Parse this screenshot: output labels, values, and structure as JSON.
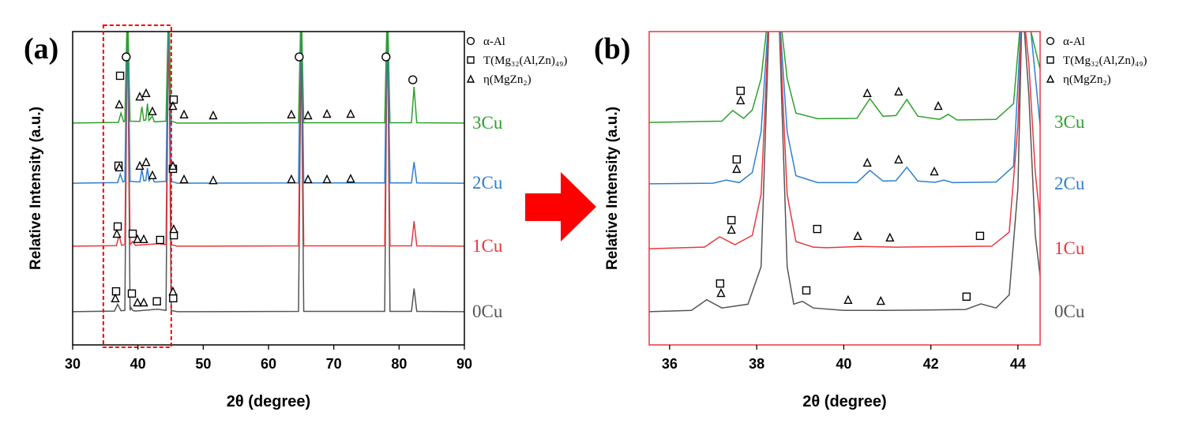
{
  "chart_data": [
    {
      "type": "line",
      "panel": "(a)",
      "xlabel": "2θ (degree)",
      "ylabel": "Relative Intensity (a.u.)",
      "frame_color": "#000000",
      "xlim": [
        30,
        90
      ],
      "xticks": [
        30,
        40,
        50,
        60,
        70,
        80,
        90
      ],
      "ylim": [
        0,
        100
      ],
      "highlight_xlim": [
        34.7,
        45.1
      ],
      "highlight_color": "#ff0000",
      "series": [
        {
          "name": "0Cu",
          "color": "#555555",
          "x": [
            30,
            36.4,
            36.9,
            37.4,
            38,
            38.4,
            38.8,
            38.9,
            39.2,
            39.6,
            43,
            44.3,
            44.7,
            45.1,
            46,
            64.6,
            65,
            65.4,
            77.8,
            78.2,
            78.6,
            81.9,
            82.3,
            82.7,
            90
          ],
          "values": [
            10.6,
            10.8,
            13,
            10.9,
            11,
            110,
            11,
            12,
            11,
            10.8,
            11.4,
            11,
            110,
            11,
            10.6,
            10.7,
            99.5,
            10.7,
            10.7,
            110,
            10.7,
            10.7,
            18,
            10.7,
            10.6
          ]
        },
        {
          "name": "1Cu",
          "color": "#e8383d",
          "x": [
            30,
            36.7,
            37.1,
            37.5,
            38,
            38.4,
            38.8,
            39.2,
            39.6,
            43.2,
            44.3,
            44.7,
            45.1,
            46,
            64.6,
            65,
            65.4,
            77.8,
            78.2,
            78.6,
            81.9,
            82.3,
            82.7,
            90
          ],
          "values": [
            31.5,
            31.7,
            35,
            31.8,
            32,
            110,
            32,
            33,
            31.8,
            32.3,
            32,
            110,
            32,
            31.5,
            31.6,
            110,
            31.6,
            31.6,
            110,
            31.6,
            31.6,
            39.5,
            31.6,
            31.5
          ]
        },
        {
          "name": "2Cu",
          "color": "#2e7fd1",
          "x": [
            30,
            36.9,
            37.3,
            37.7,
            38,
            38.4,
            38.8,
            40.3,
            40.6,
            40.9,
            41.2,
            41.45,
            41.7,
            42.2,
            42.5,
            44.3,
            44.7,
            45.1,
            46,
            64.6,
            65,
            65.4,
            77.8,
            78.2,
            78.6,
            81.9,
            82.3,
            82.7,
            90
          ],
          "values": [
            51.6,
            51.8,
            54.5,
            52,
            52.3,
            110,
            52.2,
            52,
            56,
            52.4,
            52.5,
            56.5,
            52.4,
            53.8,
            52,
            52.2,
            110,
            52.2,
            51.6,
            51.7,
            110,
            51.7,
            51.7,
            110,
            51.7,
            51.7,
            58.4,
            51.7,
            51.6
          ]
        },
        {
          "name": "3Cu",
          "color": "#2ea02e",
          "x": [
            30,
            37,
            37.4,
            37.8,
            38,
            38.4,
            38.8,
            40.3,
            40.6,
            40.9,
            41.2,
            41.45,
            41.7,
            42.2,
            42.5,
            44.3,
            44.7,
            45.1,
            46,
            64.6,
            65,
            65.4,
            77.8,
            78.2,
            78.6,
            81.9,
            82.3,
            82.7,
            90
          ],
          "values": [
            70.8,
            71,
            74,
            71.2,
            71.5,
            110,
            71.4,
            71.3,
            76,
            71.6,
            71.8,
            77,
            71.6,
            73,
            71.2,
            71.4,
            110,
            71.4,
            70.8,
            70.9,
            110,
            70.9,
            70.9,
            110,
            70.9,
            70.9,
            82.4,
            70.9,
            70.8
          ]
        }
      ],
      "phases": [
        {
          "name": "α-Al",
          "symbol": "circle",
          "x": [
            38.2,
            64.7,
            78.0,
            82.1
          ],
          "y": [
            91.9,
            91.9,
            91.9,
            84.6
          ]
        },
        {
          "name": "T(Mg₃₂(Al,Zn)₄₉)",
          "symbol": "square",
          "x": [
            37.26,
            45.48,
            37.02,
            45.36,
            36.9,
            39.2,
            43.4,
            45.5,
            36.65,
            39.07,
            42.9,
            45.4
          ],
          "y": [
            85.9,
            78.3,
            57.2,
            56.2,
            37.8,
            35.5,
            33.5,
            35.0,
            17.1,
            16.4,
            13.9,
            14.9
          ]
        },
        {
          "name": "η(MgZn₂)",
          "symbol": "triangle",
          "x": [
            37.14,
            40.28,
            41.25,
            42.22,
            45.36,
            47.06,
            51.53,
            63.5,
            66.05,
            68.95,
            72.58,
            37.14,
            40.28,
            41.25,
            42.22,
            45.36,
            47.06,
            51.53,
            63.5,
            66.05,
            68.95,
            72.58,
            36.77,
            39.92,
            40.89,
            45.48,
            36.53,
            39.92,
            40.89,
            45.36
          ],
          "y": [
            76.8,
            79.3,
            80.4,
            74.6,
            76.3,
            73.6,
            73.3,
            73.6,
            73.3,
            73.8,
            73.8,
            56.7,
            57.2,
            58.4,
            54.2,
            57.2,
            52.9,
            52.6,
            52.9,
            52.9,
            52.9,
            53.1,
            35.5,
            33.8,
            33.8,
            37.0,
            14.9,
            13.6,
            13.6,
            17.1
          ]
        }
      ]
    },
    {
      "type": "line",
      "panel": "(b)",
      "xlabel": "2θ (degree)",
      "ylabel": "Relative Intensity (a.u.)",
      "frame_color": "#e8383d",
      "xlim": [
        35.53,
        44.51
      ],
      "xticks": [
        36,
        38,
        40,
        42,
        44
      ],
      "ylim": [
        0,
        100
      ],
      "series": [
        {
          "name": "0Cu",
          "color": "#555555",
          "x": [
            35.53,
            36.5,
            36.85,
            37.2,
            37.8,
            38.1,
            38.3,
            38.5,
            38.7,
            38.85,
            39.05,
            39.3,
            40,
            41,
            42.8,
            43.15,
            43.5,
            43.8,
            44.0,
            44.1,
            44.25,
            44.4,
            44.51
          ],
          "values": [
            10.6,
            11,
            14.4,
            11.8,
            13,
            25,
            110,
            110,
            25,
            13,
            13.9,
            11.8,
            11,
            11,
            11.3,
            13.1,
            11.8,
            16,
            50,
            110,
            80,
            35,
            22
          ]
        },
        {
          "name": "1Cu",
          "color": "#e8383d",
          "x": [
            35.53,
            36.8,
            37.15,
            37.5,
            37.9,
            38.1,
            38.3,
            38.5,
            38.7,
            38.9,
            39.3,
            39.6,
            40.4,
            41.2,
            43.4,
            43.8,
            44.0,
            44.1,
            44.25,
            44.4,
            44.51
          ],
          "values": [
            30.7,
            31.2,
            34.5,
            32,
            35,
            48,
            110,
            110,
            48,
            33,
            31.2,
            31,
            31.4,
            31.2,
            31.5,
            36,
            70,
            110,
            90,
            55,
            40
          ]
        },
        {
          "name": "2Cu",
          "color": "#2e7fd1",
          "x": [
            35.53,
            37,
            37.3,
            37.6,
            37.9,
            38.1,
            38.3,
            38.5,
            38.7,
            38.9,
            39.4,
            40.3,
            40.6,
            40.9,
            41.2,
            41.45,
            41.7,
            42.1,
            42.3,
            42.5,
            43.5,
            43.9,
            44.1,
            44.3,
            44.51
          ],
          "values": [
            51.4,
            51.6,
            52.6,
            51.8,
            55,
            68,
            110,
            110,
            68,
            54,
            51.8,
            51.8,
            55.7,
            52.3,
            52.4,
            56.7,
            52.3,
            51.9,
            52.6,
            51.8,
            52,
            57,
            110,
            100,
            70
          ]
        },
        {
          "name": "3Cu",
          "color": "#2ea02e",
          "x": [
            35.53,
            37.2,
            37.45,
            37.7,
            37.9,
            38.1,
            38.3,
            38.5,
            38.7,
            38.9,
            39.4,
            40.3,
            40.6,
            40.9,
            41.2,
            41.45,
            41.7,
            42.2,
            42.4,
            42.6,
            43.5,
            43.9,
            44.1,
            44.3,
            44.51
          ],
          "values": [
            71,
            71.4,
            74.8,
            72.3,
            75,
            85,
            110,
            110,
            85,
            74,
            72.2,
            72.3,
            78.6,
            73,
            73.2,
            78.3,
            73,
            72,
            73.6,
            71.8,
            72,
            77,
            110,
            100,
            88
          ]
        }
      ],
      "phases": [
        {
          "name": "α-Al",
          "symbol": "circle"
        },
        {
          "name": "T(Mg₃₂(Al,Zn)₄₉)",
          "symbol": "square",
          "x": [
            37.63,
            37.54,
            37.42,
            39.39,
            43.13,
            37.16,
            39.14,
            42.82
          ],
          "y": [
            81.1,
            59.2,
            39.8,
            37.0,
            34.8,
            19.6,
            17.4,
            15.4
          ]
        },
        {
          "name": "η(MgZn₂)",
          "symbol": "triangle",
          "x": [
            37.63,
            40.54,
            41.26,
            42.17,
            37.54,
            40.54,
            41.26,
            42.08,
            37.42,
            40.32,
            41.06,
            37.18,
            40.1,
            40.85
          ],
          "y": [
            78.1,
            80.4,
            80.9,
            76.3,
            56.2,
            58.2,
            59.2,
            55.4,
            36.8,
            34.8,
            34.3,
            16.6,
            14.4,
            14.1
          ]
        }
      ]
    }
  ]
}
